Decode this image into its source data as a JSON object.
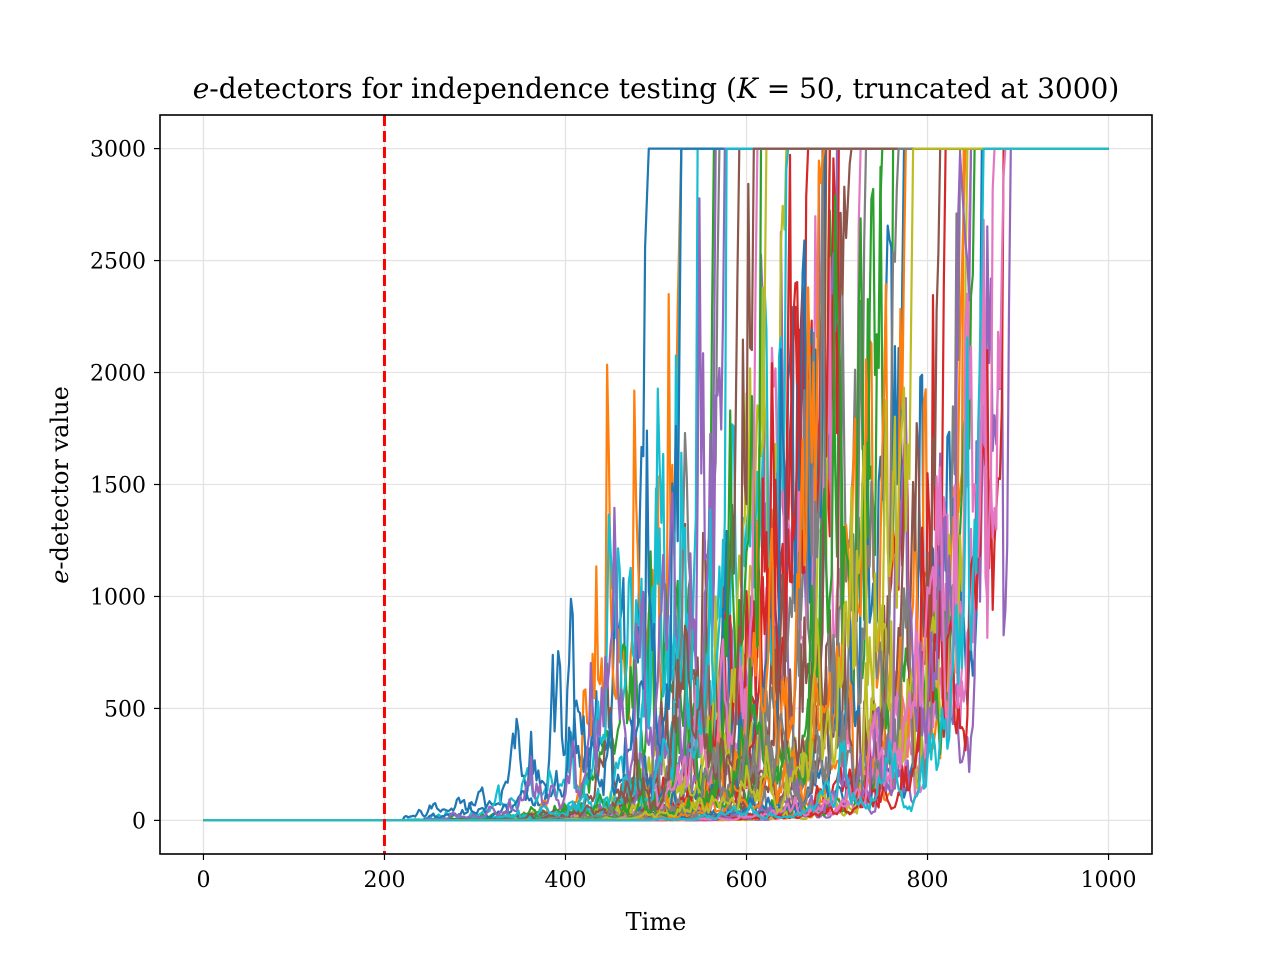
{
  "chart_data": {
    "type": "line",
    "title": "e-detectors for independence testing (K = 50, truncated at 3000)",
    "xlabel": "Time",
    "ylabel": "e-detector value",
    "xlim": [
      -48,
      1048
    ],
    "ylim": [
      -150,
      3150
    ],
    "xticks": [
      0,
      200,
      400,
      600,
      800,
      1000
    ],
    "yticks": [
      0,
      500,
      1000,
      1500,
      2000,
      2500,
      3000
    ],
    "xtick_labels": [
      "0",
      "200",
      "400",
      "600",
      "800",
      "1000"
    ],
    "ytick_labels": [
      "0",
      "500",
      "1000",
      "1500",
      "2000",
      "2500",
      "3000"
    ],
    "grid": true,
    "changepoint": {
      "x": 200,
      "color": "#ff0000",
      "style": "dashed"
    },
    "truncation": 3000,
    "n_series": 50,
    "x_end": 1000,
    "palette": [
      "#1f77b4",
      "#ff7f0e",
      "#2ca02c",
      "#d62728",
      "#9467bd",
      "#8c564b",
      "#e377c2",
      "#7f7f7f",
      "#bcbd22",
      "#17becf"
    ],
    "series_summary": {
      "earliest_hit_truncation": 530,
      "latest_hit_truncation": 925,
      "typical_value_at_600": 600
    }
  }
}
